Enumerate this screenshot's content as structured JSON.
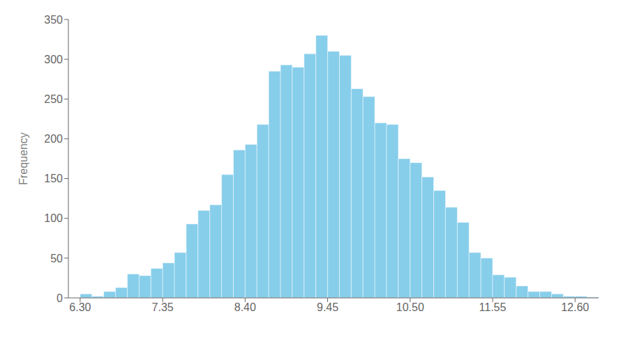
{
  "chart_data": {
    "type": "histogram",
    "ylabel": "Frequency",
    "bins": [
      6.3,
      6.45,
      6.6,
      6.75,
      6.9,
      7.05,
      7.2,
      7.35,
      7.5,
      7.65,
      7.8,
      7.95,
      8.1,
      8.25,
      8.4,
      8.55,
      8.7,
      8.85,
      9.0,
      9.15,
      9.3,
      9.45,
      9.6,
      9.75,
      9.9,
      10.05,
      10.2,
      10.35,
      10.5,
      10.65,
      10.8,
      10.95,
      11.1,
      11.25,
      11.4,
      11.55,
      11.7,
      11.85,
      12.0,
      12.15,
      12.3,
      12.45,
      12.6,
      12.75,
      12.9
    ],
    "values": [
      5,
      2,
      8,
      13,
      30,
      28,
      37,
      44,
      57,
      93,
      110,
      117,
      155,
      186,
      193,
      218,
      285,
      293,
      290,
      307,
      330,
      310,
      305,
      263,
      253,
      220,
      218,
      175,
      170,
      152,
      135,
      114,
      95,
      57,
      50,
      29,
      26,
      15,
      8,
      8,
      5,
      2,
      2,
      1
    ],
    "color": "#87CEEB",
    "xlim": [
      6.15,
      12.9
    ],
    "xticks": [
      {
        "value": 6.3,
        "label": "6.30"
      },
      {
        "value": 7.35,
        "label": "7.35"
      },
      {
        "value": 8.4,
        "label": "8.40"
      },
      {
        "value": 9.45,
        "label": "9.45"
      },
      {
        "value": 10.5,
        "label": "10.50"
      },
      {
        "value": 11.55,
        "label": "11.55"
      },
      {
        "value": 12.6,
        "label": "12.60"
      }
    ],
    "ylim": [
      0,
      350
    ],
    "yticks": [
      0,
      50,
      100,
      150,
      200,
      250,
      300,
      350
    ],
    "grid": false
  }
}
